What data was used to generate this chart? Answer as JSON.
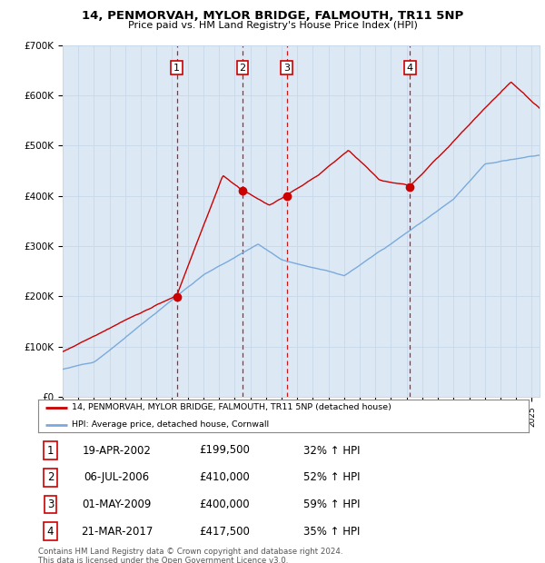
{
  "title": "14, PENMORVAH, MYLOR BRIDGE, FALMOUTH, TR11 5NP",
  "subtitle": "Price paid vs. HM Land Registry's House Price Index (HPI)",
  "background_color": "#dce9f5",
  "grid_color": "#c8d8e8",
  "ylim": [
    0,
    700000
  ],
  "yticks": [
    0,
    100000,
    200000,
    300000,
    400000,
    500000,
    600000,
    700000
  ],
  "ytick_labels": [
    "£0",
    "£100K",
    "£200K",
    "£300K",
    "£400K",
    "£500K",
    "£600K",
    "£700K"
  ],
  "xlim_start": 1995.0,
  "xlim_end": 2025.5,
  "sale_dates": [
    2002.3,
    2006.51,
    2009.33,
    2017.22
  ],
  "sale_prices": [
    199500,
    410000,
    400000,
    417500
  ],
  "sale_labels": [
    "1",
    "2",
    "3",
    "4"
  ],
  "sale_line_color": "#cc0000",
  "hpi_line_color": "#7aaadd",
  "legend_sale_label": "14, PENMORVAH, MYLOR BRIDGE, FALMOUTH, TR11 5NP (detached house)",
  "legend_hpi_label": "HPI: Average price, detached house, Cornwall",
  "table_rows": [
    {
      "num": "1",
      "date": "19-APR-2002",
      "price": "£199,500",
      "pct": "32% ↑ HPI"
    },
    {
      "num": "2",
      "date": "06-JUL-2006",
      "price": "£410,000",
      "pct": "52% ↑ HPI"
    },
    {
      "num": "3",
      "date": "01-MAY-2009",
      "price": "£400,000",
      "pct": "59% ↑ HPI"
    },
    {
      "num": "4",
      "date": "21-MAR-2017",
      "price": "£417,500",
      "pct": "35% ↑ HPI"
    }
  ],
  "footnote": "Contains HM Land Registry data © Crown copyright and database right 2024.\nThis data is licensed under the Open Government Licence v3.0.",
  "vline_color": "#cc0000",
  "num_box_color": "#cc0000"
}
